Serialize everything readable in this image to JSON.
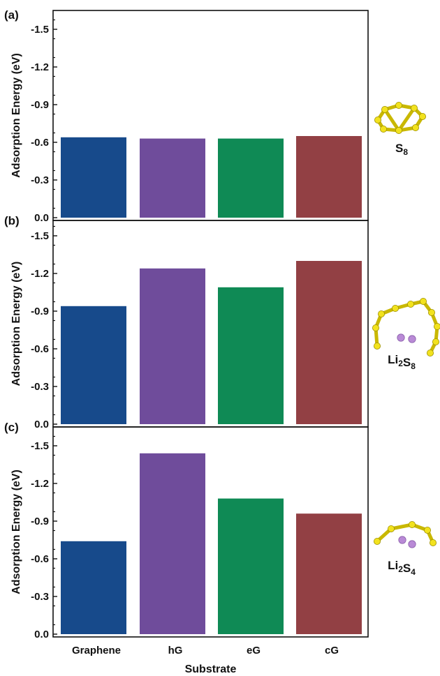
{
  "chart_data": [
    {
      "type": "bar",
      "panel_label": "(a)",
      "molecule": {
        "base": "S",
        "subs": [
          "8"
        ],
        "text": "S8"
      },
      "categories": [
        "Graphene",
        "hG",
        "eG",
        "cG"
      ],
      "values": [
        -0.64,
        -0.63,
        -0.63,
        -0.65
      ],
      "ylabel": "Adsorption Energy (eV)",
      "ylim": [
        0.0,
        -1.7
      ],
      "yticks": [
        "-1.5",
        "-1.2",
        "-0.9",
        "-0.6",
        "-0.3",
        "0.0"
      ],
      "colors": [
        "#174a8b",
        "#6f4c9b",
        "#0f8a55",
        "#924044"
      ]
    },
    {
      "type": "bar",
      "panel_label": "(b)",
      "molecule": {
        "base": "Li2S8",
        "subs": [
          "2",
          "8"
        ],
        "text": "Li2S8"
      },
      "categories": [
        "Graphene",
        "hG",
        "eG",
        "cG"
      ],
      "values": [
        -0.94,
        -1.24,
        -1.09,
        -1.3
      ],
      "ylabel": "Adsorption Energy (eV)",
      "ylim": [
        0.0,
        -1.7
      ],
      "yticks": [
        "-1.5",
        "-1.2",
        "-0.9",
        "-0.6",
        "-0.3",
        "0.0"
      ],
      "colors": [
        "#174a8b",
        "#6f4c9b",
        "#0f8a55",
        "#924044"
      ]
    },
    {
      "type": "bar",
      "panel_label": "(c)",
      "molecule": {
        "base": "Li2S4",
        "subs": [
          "2",
          "4"
        ],
        "text": "Li2S4"
      },
      "categories": [
        "Graphene",
        "hG",
        "eG",
        "cG"
      ],
      "values": [
        -0.74,
        -1.44,
        -1.08,
        -0.96
      ],
      "ylabel": "Adsorption Energy (eV)",
      "xlabel": "Substrate",
      "ylim": [
        0.0,
        -1.7
      ],
      "yticks": [
        "-1.5",
        "-1.2",
        "-0.9",
        "-0.6",
        "-0.3",
        "0.0"
      ],
      "colors": [
        "#174a8b",
        "#6f4c9b",
        "#0f8a55",
        "#924044"
      ]
    }
  ],
  "style": {
    "axis_color": "#111111",
    "atom_sulfur": "#f2e21e",
    "atom_lithium": "#b98ad6"
  }
}
